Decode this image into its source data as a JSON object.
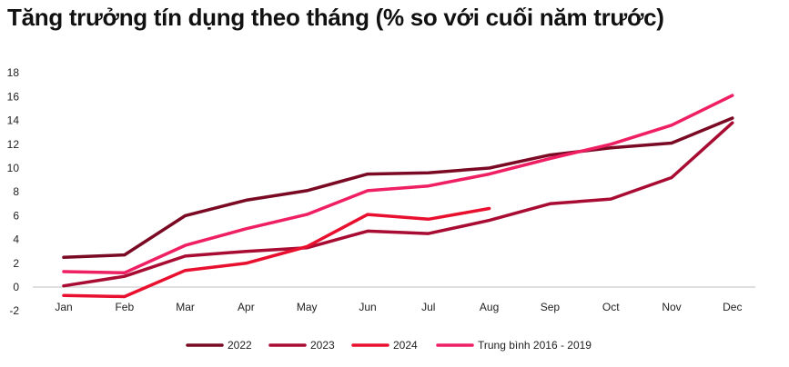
{
  "chart_data": {
    "type": "line",
    "title": "Tăng trưởng tín dụng theo tháng (% so với cuối năm trước)",
    "categories": [
      "Jan",
      "Feb",
      "Mar",
      "Apr",
      "May",
      "Jun",
      "Jul",
      "Aug",
      "Sep",
      "Oct",
      "Nov",
      "Dec"
    ],
    "ylim": [
      -2,
      18
    ],
    "yticks": [
      -2,
      0,
      2,
      4,
      6,
      8,
      10,
      12,
      14,
      16,
      18
    ],
    "grid": false,
    "legend_position": "bottom",
    "series": [
      {
        "name": "2022",
        "color": "#7a0a24",
        "values": [
          2.5,
          2.7,
          6.0,
          7.3,
          8.1,
          9.5,
          9.6,
          10.0,
          11.1,
          11.7,
          12.1,
          14.2
        ]
      },
      {
        "name": "2023",
        "color": "#a80c32",
        "values": [
          0.1,
          0.9,
          2.6,
          3.0,
          3.3,
          4.7,
          4.5,
          5.6,
          7.0,
          7.4,
          9.2,
          13.8
        ]
      },
      {
        "name": "2024",
        "color": "#e8102e",
        "values": [
          -0.7,
          -0.8,
          1.4,
          2.0,
          3.4,
          6.1,
          5.7,
          6.6,
          null,
          null,
          null,
          null
        ]
      },
      {
        "name": "Trung bình 2016 - 2019",
        "color": "#ef1f63",
        "values": [
          1.3,
          1.2,
          3.5,
          4.9,
          6.1,
          8.1,
          8.5,
          9.5,
          10.8,
          12.0,
          13.6,
          16.1
        ]
      }
    ]
  }
}
